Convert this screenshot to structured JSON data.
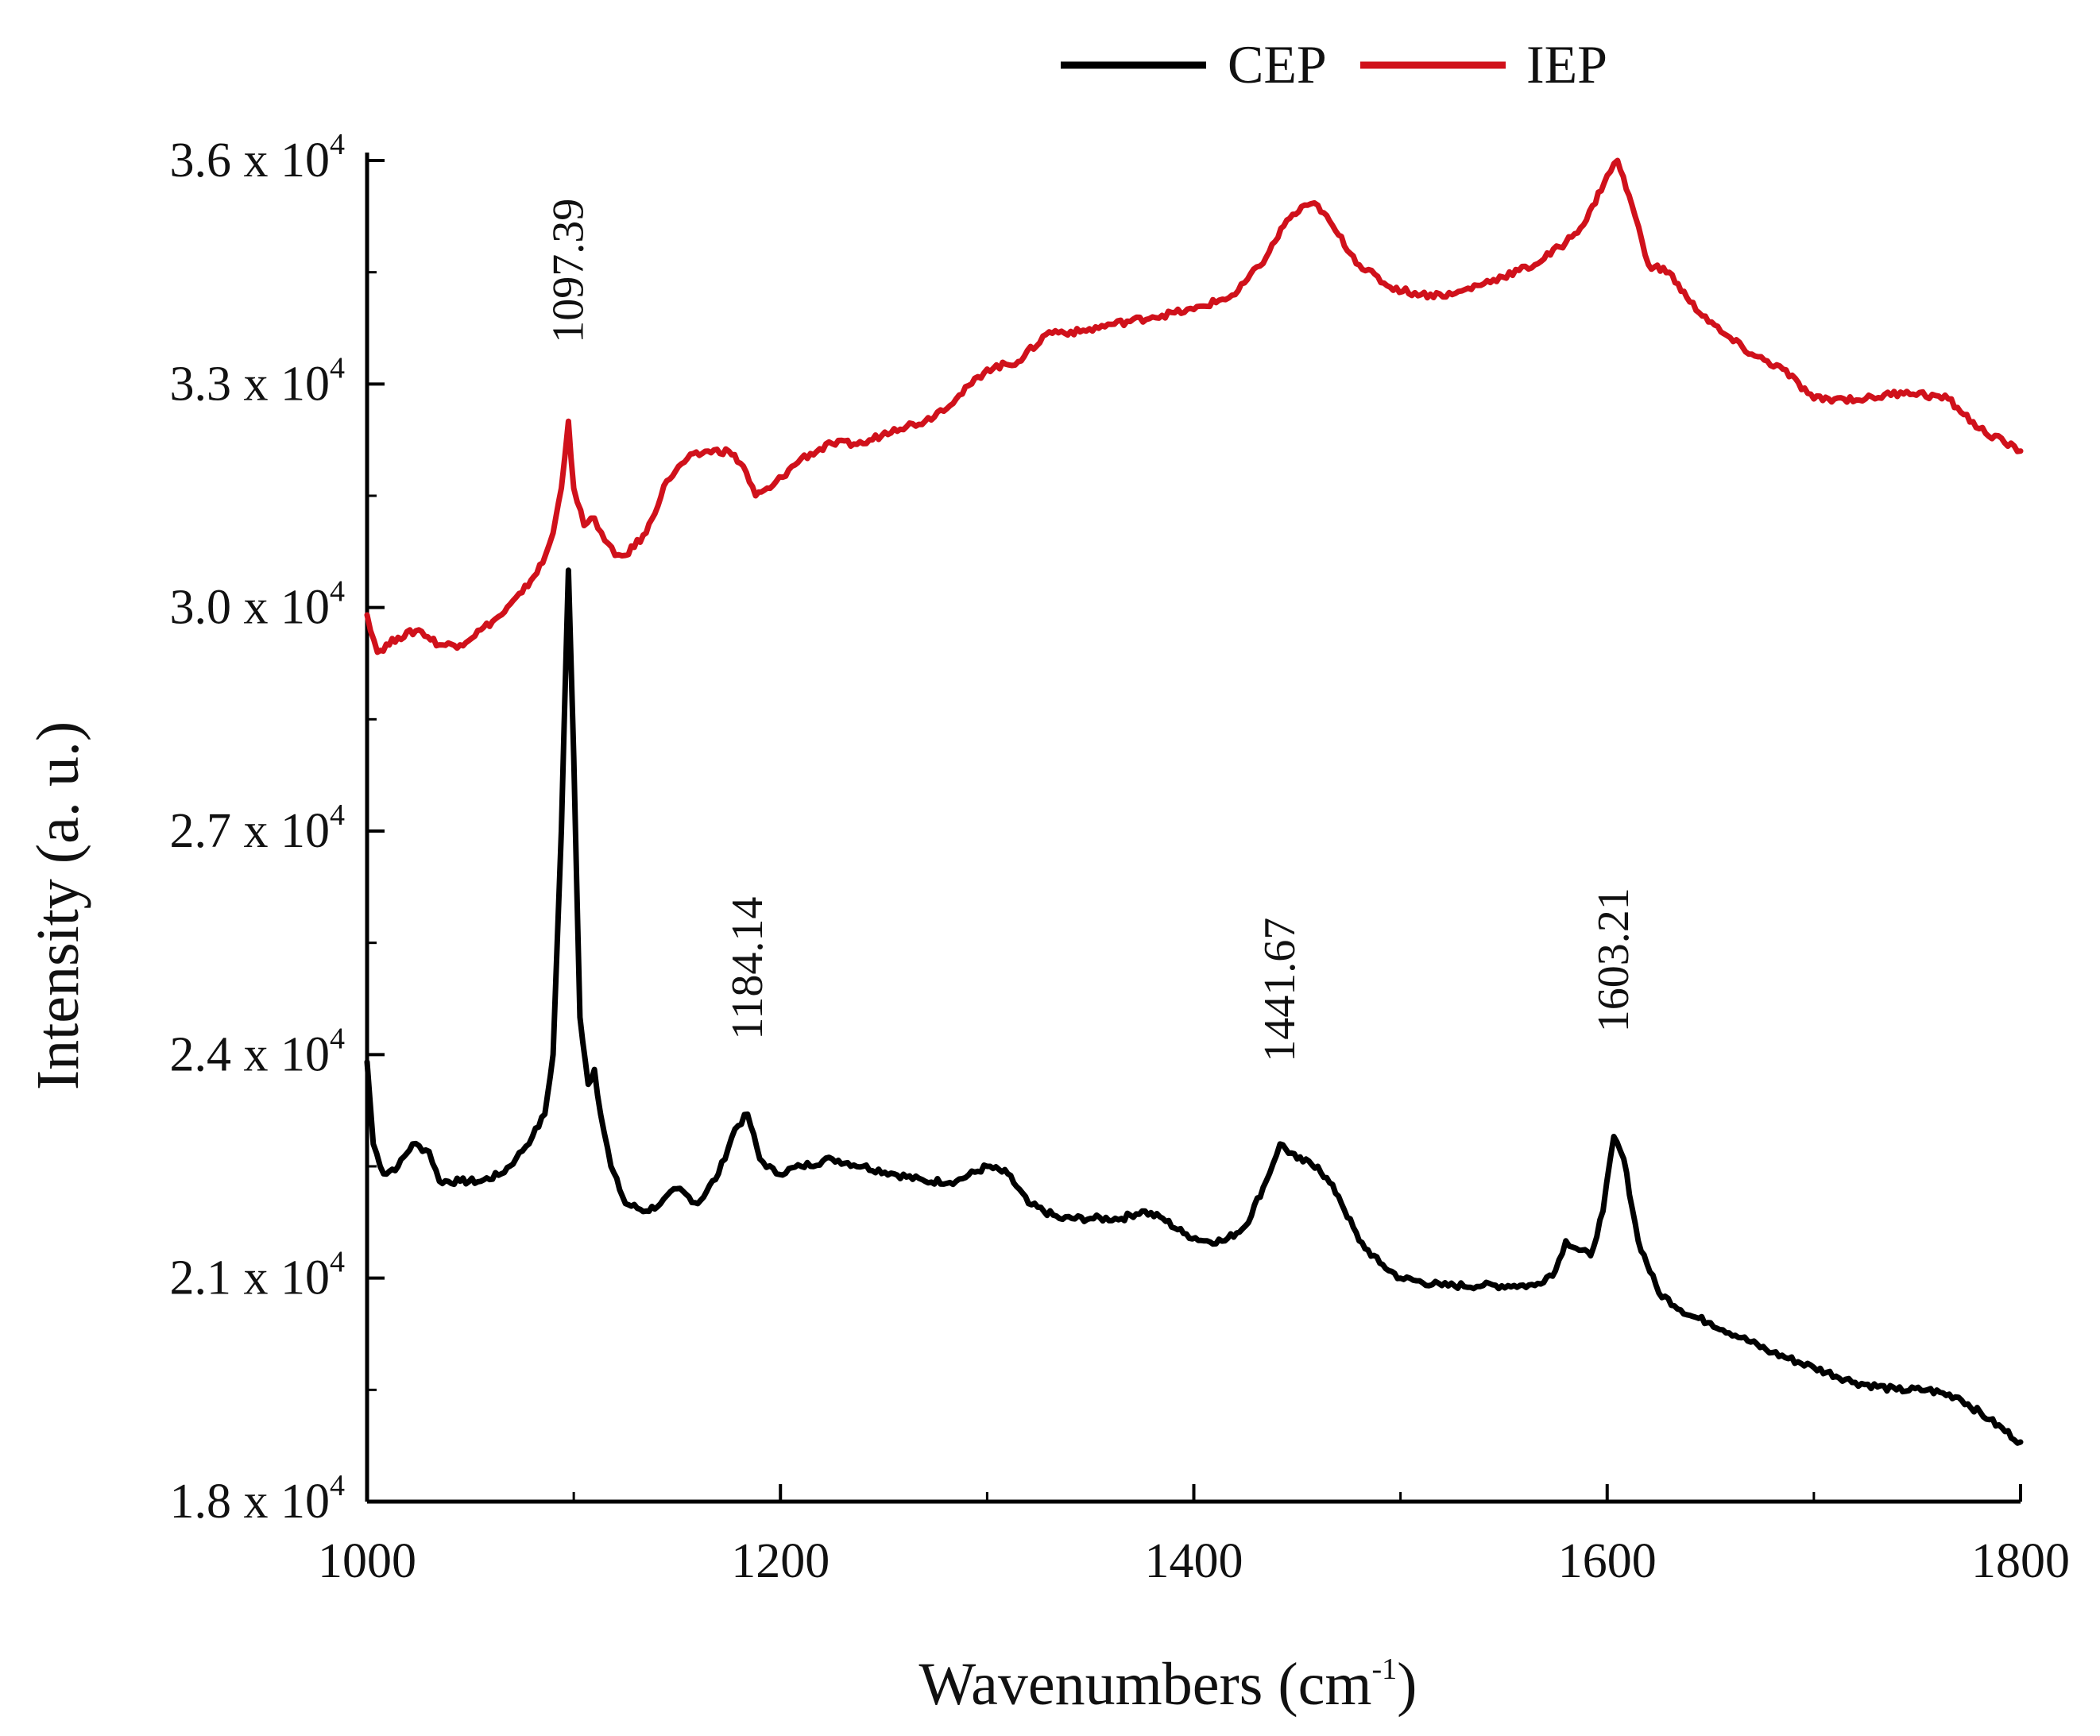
{
  "chart_data": {
    "type": "line",
    "title": "",
    "xlabel": "Wavenumbers (cm",
    "xlabel_sup": "-1",
    "xlabel_end": ")",
    "ylabel": "Intensity (a. u.)",
    "xlim": [
      1000,
      1800
    ],
    "ylim": [
      18000,
      36000
    ],
    "x_ticks": [
      "1000",
      "1200",
      "1400",
      "1600",
      "1800"
    ],
    "x_tick_values": [
      1000,
      1200,
      1400,
      1600,
      1800
    ],
    "y_tick_values": [
      18000,
      21000,
      24000,
      27000,
      30000,
      33000,
      36000
    ],
    "y_ticks": [
      {
        "mant": "1.8",
        "times": "x",
        "base": "10",
        "exp": "4"
      },
      {
        "mant": "2.1",
        "times": "x",
        "base": "10",
        "exp": "4"
      },
      {
        "mant": "2.4",
        "times": "x",
        "base": "10",
        "exp": "4"
      },
      {
        "mant": "2.7",
        "times": "x",
        "base": "10",
        "exp": "4"
      },
      {
        "mant": "3.0",
        "times": "x",
        "base": "10",
        "exp": "4"
      },
      {
        "mant": "3.3",
        "times": "x",
        "base": "10",
        "exp": "4"
      },
      {
        "mant": "3.6",
        "times": "x",
        "base": "10",
        "exp": "4"
      }
    ],
    "grid": false,
    "legend_position": "top-center",
    "legend": [
      "CEP",
      "IEP"
    ],
    "series": [
      {
        "name": "CEP",
        "color": "#000000",
        "x": [
          1000,
          1003,
          1008,
          1015,
          1022,
          1030,
          1035,
          1045,
          1055,
          1065,
          1072,
          1080,
          1086,
          1090,
          1094,
          1097.4,
          1100,
          1103,
          1107,
          1110,
          1113,
          1118,
          1125,
          1135,
          1142,
          1150,
          1160,
          1170,
          1178,
          1184.1,
          1190,
          1198,
          1210,
          1225,
          1240,
          1255,
          1270,
          1285,
          1300,
          1310,
          1320,
          1335,
          1350,
          1365,
          1375,
          1385,
          1395,
          1405,
          1415,
          1425,
          1435,
          1441.7,
          1450,
          1460,
          1470,
          1480,
          1490,
          1500,
          1520,
          1540,
          1555,
          1565,
          1575,
          1580,
          1585,
          1592,
          1598,
          1603.2,
          1608,
          1615,
          1625,
          1640,
          1650,
          1665,
          1680,
          1700,
          1720,
          1740,
          1755,
          1770,
          1785,
          1800
        ],
        "y": [
          23900,
          22800,
          22400,
          22500,
          22800,
          22700,
          22300,
          22300,
          22300,
          22400,
          22600,
          22900,
          23200,
          24000,
          27000,
          30500,
          28000,
          24500,
          23600,
          23800,
          23200,
          22500,
          22000,
          21900,
          22000,
          22200,
          22000,
          22400,
          23000,
          23200,
          22600,
          22400,
          22500,
          22600,
          22500,
          22400,
          22300,
          22300,
          22500,
          22400,
          22000,
          21800,
          21800,
          21800,
          21900,
          21800,
          21600,
          21500,
          21500,
          21700,
          22300,
          22800,
          22600,
          22500,
          22100,
          21500,
          21200,
          21000,
          20900,
          20900,
          20900,
          20900,
          21100,
          21500,
          21400,
          21300,
          21900,
          22900,
          22600,
          21500,
          20800,
          20500,
          20400,
          20200,
          20000,
          19800,
          19600,
          19500,
          19500,
          19400,
          19100,
          18800
        ]
      },
      {
        "name": "IEP",
        "color": "#d0111b",
        "x": [
          1000,
          1005,
          1015,
          1025,
          1035,
          1045,
          1055,
          1065,
          1075,
          1085,
          1090,
          1094,
          1097.4,
          1100,
          1105,
          1110,
          1115,
          1120,
          1125,
          1135,
          1145,
          1155,
          1165,
          1175,
          1182,
          1188,
          1195,
          1210,
          1225,
          1240,
          1255,
          1270,
          1285,
          1300,
          1315,
          1330,
          1345,
          1360,
          1380,
          1400,
          1420,
          1435,
          1445,
          1455,
          1460,
          1470,
          1480,
          1495,
          1510,
          1525,
          1545,
          1565,
          1580,
          1590,
          1600,
          1605,
          1612,
          1620,
          1630,
          1640,
          1655,
          1670,
          1685,
          1700,
          1710,
          1725,
          1745,
          1765,
          1780,
          1800
        ],
        "y": [
          29900,
          29400,
          29600,
          29700,
          29500,
          29500,
          29700,
          29900,
          30200,
          30600,
          31000,
          31600,
          32500,
          31600,
          31100,
          31200,
          30900,
          30700,
          30700,
          31000,
          31700,
          32000,
          32100,
          32100,
          31900,
          31500,
          31600,
          32000,
          32200,
          32200,
          32400,
          32500,
          32800,
          33200,
          33300,
          33700,
          33700,
          33800,
          33900,
          34000,
          34200,
          34700,
          35200,
          35400,
          35400,
          35000,
          34600,
          34300,
          34200,
          34200,
          34400,
          34600,
          34900,
          35200,
          35800,
          36000,
          35400,
          34600,
          34500,
          34100,
          33700,
          33400,
          33200,
          32800,
          32800,
          32800,
          32900,
          32800,
          32400,
          32100
        ]
      }
    ],
    "annotations": [
      "1097.39",
      "1184.14",
      "1441.67",
      "1603.21"
    ],
    "annotation_x": [
      1097.39,
      1184.14,
      1441.67,
      1603.21
    ],
    "annotation_y": [
      33550,
      24200,
      23900,
      24300
    ]
  }
}
